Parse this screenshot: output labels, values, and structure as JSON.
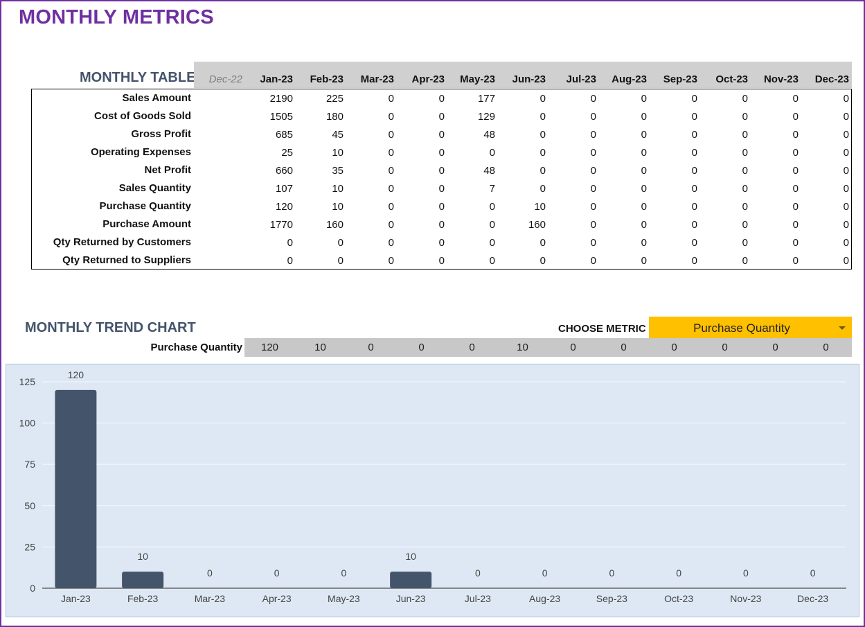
{
  "page": {
    "title": "MONTHLY METRICS",
    "border_color": "#7030a0"
  },
  "table": {
    "title": "MONTHLY TABLE",
    "prev_month": "Dec-22",
    "months": [
      "Jan-23",
      "Feb-23",
      "Mar-23",
      "Apr-23",
      "May-23",
      "Jun-23",
      "Jul-23",
      "Aug-23",
      "Sep-23",
      "Oct-23",
      "Nov-23",
      "Dec-23"
    ],
    "rows": [
      {
        "label": "Sales Amount",
        "values": [
          "2190",
          "225",
          "0",
          "0",
          "177",
          "0",
          "0",
          "0",
          "0",
          "0",
          "0",
          "0"
        ]
      },
      {
        "label": "Cost of Goods Sold",
        "values": [
          "1505",
          "180",
          "0",
          "0",
          "129",
          "0",
          "0",
          "0",
          "0",
          "0",
          "0",
          "0"
        ]
      },
      {
        "label": "Gross Profit",
        "values": [
          "685",
          "45",
          "0",
          "0",
          "48",
          "0",
          "0",
          "0",
          "0",
          "0",
          "0",
          "0"
        ]
      },
      {
        "label": "Operating Expenses",
        "values": [
          "25",
          "10",
          "0",
          "0",
          "0",
          "0",
          "0",
          "0",
          "0",
          "0",
          "0",
          "0"
        ]
      },
      {
        "label": "Net Profit",
        "values": [
          "660",
          "35",
          "0",
          "0",
          "48",
          "0",
          "0",
          "0",
          "0",
          "0",
          "0",
          "0"
        ]
      },
      {
        "label": "Sales Quantity",
        "values": [
          "107",
          "10",
          "0",
          "0",
          "7",
          "0",
          "0",
          "0",
          "0",
          "0",
          "0",
          "0"
        ]
      },
      {
        "label": "Purchase Quantity",
        "values": [
          "120",
          "10",
          "0",
          "0",
          "0",
          "10",
          "0",
          "0",
          "0",
          "0",
          "0",
          "0"
        ]
      },
      {
        "label": "Purchase Amount",
        "values": [
          "1770",
          "160",
          "0",
          "0",
          "0",
          "160",
          "0",
          "0",
          "0",
          "0",
          "0",
          "0"
        ]
      },
      {
        "label": "Qty Returned by Customers",
        "values": [
          "0",
          "0",
          "0",
          "0",
          "0",
          "0",
          "0",
          "0",
          "0",
          "0",
          "0",
          "0"
        ]
      },
      {
        "label": "Qty Returned to Suppliers",
        "values": [
          "0",
          "0",
          "0",
          "0",
          "0",
          "0",
          "0",
          "0",
          "0",
          "0",
          "0",
          "0"
        ]
      }
    ]
  },
  "trend": {
    "title": "MONTHLY TREND CHART",
    "choose_label": "CHOOSE METRIC",
    "selected_metric": "Purchase Quantity",
    "selected_label": "Purchase Quantity",
    "selected_values": [
      "120",
      "10",
      "0",
      "0",
      "0",
      "10",
      "0",
      "0",
      "0",
      "0",
      "0",
      "0"
    ],
    "accent_color": "#ffc000"
  },
  "chart_data": {
    "type": "bar",
    "categories": [
      "Jan-23",
      "Feb-23",
      "Mar-23",
      "Apr-23",
      "May-23",
      "Jun-23",
      "Jul-23",
      "Aug-23",
      "Sep-23",
      "Oct-23",
      "Nov-23",
      "Dec-23"
    ],
    "values": [
      120,
      10,
      0,
      0,
      0,
      10,
      0,
      0,
      0,
      0,
      0,
      0
    ],
    "data_labels": [
      "120",
      "10",
      "0",
      "0",
      "0",
      "10",
      "0",
      "0",
      "0",
      "0",
      "0",
      "0"
    ],
    "yticks": [
      "0",
      "25",
      "50",
      "75",
      "100",
      "125"
    ],
    "ylim": [
      0,
      125
    ],
    "grid": true,
    "title": "",
    "xlabel": "",
    "ylabel": "",
    "bar_color": "#44546a",
    "background": "#dde8f4"
  }
}
